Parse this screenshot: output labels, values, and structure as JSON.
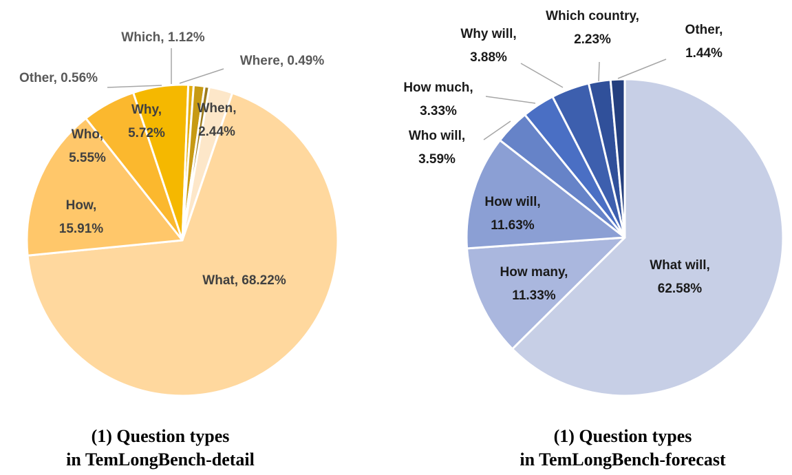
{
  "chart_data": [
    {
      "type": "pie",
      "caption": [
        "(1) Question types",
        "in TemLongBench-detail"
      ],
      "slices": [
        {
          "label": "When",
          "value": 2.44,
          "display": [
            "When,",
            "2.44%"
          ],
          "color": "#fde7c9",
          "text_color": "#404040"
        },
        {
          "label": "What",
          "value": 68.22,
          "display": [
            "What, 68.22%"
          ],
          "color": "#ffd89e",
          "text_color": "#404040"
        },
        {
          "label": "How",
          "value": 15.91,
          "display": [
            "How,",
            "15.91%"
          ],
          "color": "#ffc76a",
          "text_color": "#404040"
        },
        {
          "label": "Who",
          "value": 5.55,
          "display": [
            "Who,",
            "5.55%"
          ],
          "color": "#fbb82e",
          "text_color": "#404040"
        },
        {
          "label": "Why",
          "value": 5.72,
          "display": [
            "Why,",
            "5.72%"
          ],
          "color": "#f5b800",
          "text_color": "#404040"
        },
        {
          "label": "Other",
          "value": 0.56,
          "display": [
            "Other, 0.56%"
          ],
          "color": "#e2ac10",
          "text_color": "#595959"
        },
        {
          "label": "Which",
          "value": 1.12,
          "display": [
            "Which, 1.12%"
          ],
          "color": "#c79a14",
          "text_color": "#595959"
        },
        {
          "label": "Where",
          "value": 0.49,
          "display": [
            "Where, 0.49%"
          ],
          "color": "#9c7a1c",
          "text_color": "#595959"
        }
      ]
    },
    {
      "type": "pie",
      "caption": [
        "(1) Question types",
        "in TemLongBench-forecast"
      ],
      "slices": [
        {
          "label": "What will",
          "value": 62.58,
          "display": [
            "What will,",
            "62.58%"
          ],
          "color": "#c7cfe6",
          "text_color": "#1a1a1a"
        },
        {
          "label": "How many",
          "value": 11.33,
          "display": [
            "How many,",
            "11.33%"
          ],
          "color": "#aab7de",
          "text_color": "#1a1a1a"
        },
        {
          "label": "How will",
          "value": 11.63,
          "display": [
            "How will,",
            "11.63%"
          ],
          "color": "#8b9fd4",
          "text_color": "#1a1a1a"
        },
        {
          "label": "Who will",
          "value": 3.59,
          "display": [
            "Who will,",
            "3.59%"
          ],
          "color": "#6683c8",
          "text_color": "#1a1a1a"
        },
        {
          "label": "How much",
          "value": 3.33,
          "display": [
            "How much,",
            "3.33%"
          ],
          "color": "#4a6fc4",
          "text_color": "#1a1a1a"
        },
        {
          "label": "Why will",
          "value": 3.88,
          "display": [
            "Why will,",
            "3.88%"
          ],
          "color": "#3d5fae",
          "text_color": "#1a1a1a"
        },
        {
          "label": "Which country",
          "value": 2.23,
          "display": [
            "Which country,",
            "2.23%"
          ],
          "color": "#30509a",
          "text_color": "#1a1a1a"
        },
        {
          "label": "Other",
          "value": 1.44,
          "display": [
            "Other,",
            "1.44%"
          ],
          "color": "#243f7e",
          "text_color": "#1a1a1a"
        }
      ]
    }
  ]
}
